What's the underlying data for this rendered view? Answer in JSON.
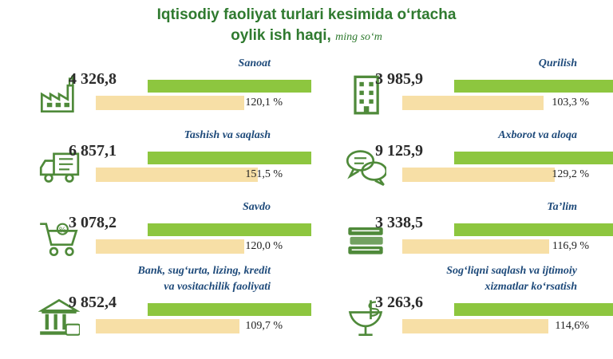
{
  "title": {
    "line1": "Iqtisodiy faoliyat turlari kesimida o‘rtacha",
    "line2": "oylik ish haqi,",
    "unit": "ming so‘m"
  },
  "colors": {
    "title": "#2f7a2f",
    "value_bar": "#8dc63f",
    "index_bar": "#f7dfa6",
    "label": "#1e4a7a",
    "icon": "#4f8a3a"
  },
  "chart_data": {
    "type": "bar",
    "title": "Iqtisodiy faoliyat turlari kesimida o‘rtacha oylik ish haqi, ming so‘m",
    "categories": [
      "Sanoat",
      "Qurilish",
      "Tashish va saqlash",
      "Axborot va aloqa",
      "Savdo",
      "Ta’lim",
      "Bank, sug‘urta, lizing, kredit va vositachilik faoliyati",
      "Sog‘liqni saqlash va ijtimoiy xizmatlar ko‘rsatish"
    ],
    "series": [
      {
        "values": [
          4326.8,
          3985.9,
          6857.1,
          9125.9,
          3078.2,
          3338.5,
          9852.4,
          3263.6
        ]
      },
      {
        "values": [
          120.1,
          103.3,
          151.5,
          129.2,
          120.0,
          116.9,
          109.7,
          114.6
        ]
      }
    ],
    "items": [
      {
        "label_lines": [
          "Sanoat"
        ],
        "value_text": "4 326,8",
        "pct_text": "120,1 %",
        "icon": "factory-icon"
      },
      {
        "label_lines": [
          "Qurilish"
        ],
        "value_text": "3 985,9",
        "pct_text": "103,3 %",
        "icon": "building-icon"
      },
      {
        "label_lines": [
          "Tashish va saqlash"
        ],
        "value_text": "6 857,1",
        "pct_text": "151,5 %",
        "icon": "truck-icon"
      },
      {
        "label_lines": [
          "Axborot va aloqa"
        ],
        "value_text": "9 125,9",
        "pct_text": "129,2 %",
        "icon": "chat-bubbles-icon"
      },
      {
        "label_lines": [
          "Savdo"
        ],
        "value_text": "3 078,2",
        "pct_text": "120,0 %",
        "icon": "shopping-cart-icon"
      },
      {
        "label_lines": [
          "Ta’lim"
        ],
        "value_text": "3 338,5",
        "pct_text": "116,9 %",
        "icon": "books-icon"
      },
      {
        "label_lines": [
          "Bank, sug‘urta, lizing, kredit",
          "va vositachilik faoliyati"
        ],
        "value_text": "9 852,4",
        "pct_text": "109,7 %",
        "icon": "bank-icon"
      },
      {
        "label_lines": [
          "Sog‘liqni saqlash va ijtimoiy",
          "xizmatlar ko‘rsatish"
        ],
        "value_text": "3 263,6",
        "pct_text": "114,6%",
        "icon": "caduceus-icon"
      }
    ]
  }
}
